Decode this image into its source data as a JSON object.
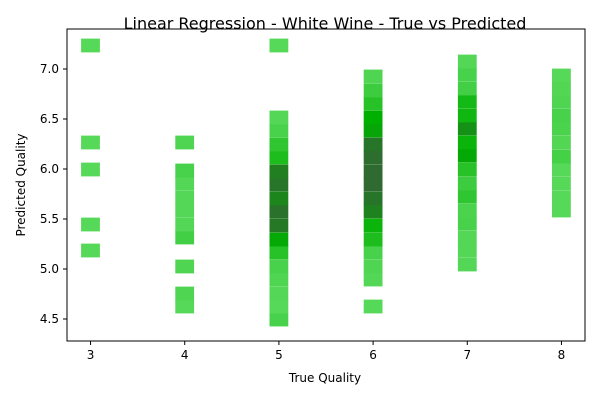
{
  "chart_data": {
    "type": "heatmap",
    "title": "Linear Regression - White Wine - True vs Predicted",
    "xlabel": "True Quality",
    "ylabel": "Predicted Quality",
    "xlim": [
      2.75,
      8.25
    ],
    "ylim": [
      4.28,
      7.4
    ],
    "x_ticks": [
      3,
      4,
      5,
      6,
      7,
      8
    ],
    "y_ticks": [
      4.5,
      5.0,
      5.5,
      6.0,
      6.5,
      7.0
    ],
    "x_tick_labels": [
      "3",
      "4",
      "5",
      "6",
      "7",
      "8"
    ],
    "y_tick_labels": [
      "4.5",
      "5.0",
      "5.5",
      "6.0",
      "6.5",
      "7.0"
    ],
    "bin_width_x": 0.2,
    "bin_height_y": 0.134,
    "colors": {
      "low": "#5fdc62",
      "mid": "#00b000",
      "high": "#2f6a30",
      "axes": "#000000",
      "background": "#ffffff"
    },
    "columns": [
      {
        "x": 3,
        "cells": [
          {
            "y0": 5.12,
            "level": 0.05
          },
          {
            "y0": 5.38,
            "level": 0.05
          },
          {
            "y0": 5.93,
            "level": 0.05
          },
          {
            "y0": 6.2,
            "level": 0.05
          },
          {
            "y0": 7.17,
            "level": 0.05
          }
        ]
      },
      {
        "x": 4,
        "cells": [
          {
            "y0": 4.56,
            "level": 0.05
          },
          {
            "y0": 4.69,
            "level": 0.08
          },
          {
            "y0": 4.96,
            "level": 0.08
          },
          {
            "y0": 5.25,
            "level": 0.15
          },
          {
            "y0": 5.38,
            "level": 0.06
          },
          {
            "y0": 5.52,
            "level": 0.06
          },
          {
            "y0": 5.65,
            "level": 0.06
          },
          {
            "y0": 5.79,
            "level": 0.06
          },
          {
            "y0": 5.92,
            "level": 0.12
          },
          {
            "y0": 6.2,
            "level": 0.08
          }
        ]
      },
      {
        "x": 5,
        "cells": [
          {
            "y0": 4.43,
            "level": 0.12
          },
          {
            "y0": 4.56,
            "level": 0.05
          },
          {
            "y0": 4.69,
            "level": 0.06
          },
          {
            "y0": 4.83,
            "level": 0.08
          },
          {
            "y0": 4.96,
            "level": 0.12
          },
          {
            "y0": 5.1,
            "level": 0.3
          },
          {
            "y0": 5.23,
            "level": 0.55
          },
          {
            "y0": 5.37,
            "level": 0.9
          },
          {
            "y0": 5.51,
            "level": 0.95
          },
          {
            "y0": 5.64,
            "level": 0.8
          },
          {
            "y0": 5.78,
            "level": 0.92
          },
          {
            "y0": 5.91,
            "level": 0.85
          },
          {
            "y0": 6.05,
            "level": 0.35
          },
          {
            "y0": 6.18,
            "level": 0.25
          },
          {
            "y0": 6.32,
            "level": 0.12
          },
          {
            "y0": 6.45,
            "level": 0.06
          },
          {
            "y0": 7.17,
            "level": 0.05
          }
        ]
      },
      {
        "x": 6,
        "cells": [
          {
            "y0": 4.56,
            "level": 0.05
          },
          {
            "y0": 4.83,
            "level": 0.06
          },
          {
            "y0": 4.96,
            "level": 0.08
          },
          {
            "y0": 5.1,
            "level": 0.12
          },
          {
            "y0": 5.23,
            "level": 0.35
          },
          {
            "y0": 5.37,
            "level": 0.45
          },
          {
            "y0": 5.51,
            "level": 0.82
          },
          {
            "y0": 5.64,
            "level": 0.92
          },
          {
            "y0": 5.78,
            "level": 1.0
          },
          {
            "y0": 5.91,
            "level": 1.0
          },
          {
            "y0": 6.05,
            "level": 0.98
          },
          {
            "y0": 6.18,
            "level": 0.92
          },
          {
            "y0": 6.32,
            "level": 0.58
          },
          {
            "y0": 6.45,
            "level": 0.5
          },
          {
            "y0": 6.59,
            "level": 0.3
          },
          {
            "y0": 6.72,
            "level": 0.18
          },
          {
            "y0": 6.86,
            "level": 0.08
          }
        ]
      },
      {
        "x": 7,
        "cells": [
          {
            "y0": 4.98,
            "level": 0.06
          },
          {
            "y0": 5.12,
            "level": 0.06
          },
          {
            "y0": 5.25,
            "level": 0.06
          },
          {
            "y0": 5.39,
            "level": 0.12
          },
          {
            "y0": 5.52,
            "level": 0.1
          },
          {
            "y0": 5.66,
            "level": 0.25
          },
          {
            "y0": 5.79,
            "level": 0.18
          },
          {
            "y0": 5.93,
            "level": 0.3
          },
          {
            "y0": 6.07,
            "level": 0.55
          },
          {
            "y0": 6.2,
            "level": 0.45
          },
          {
            "y0": 6.34,
            "level": 0.72
          },
          {
            "y0": 6.47,
            "level": 0.42
          },
          {
            "y0": 6.61,
            "level": 0.4
          },
          {
            "y0": 6.74,
            "level": 0.15
          },
          {
            "y0": 6.88,
            "level": 0.12
          },
          {
            "y0": 7.01,
            "level": 0.06
          }
        ]
      },
      {
        "x": 8,
        "cells": [
          {
            "y0": 5.52,
            "level": 0.05
          },
          {
            "y0": 5.65,
            "level": 0.05
          },
          {
            "y0": 5.79,
            "level": 0.05
          },
          {
            "y0": 5.93,
            "level": 0.05
          },
          {
            "y0": 6.06,
            "level": 0.14
          },
          {
            "y0": 6.2,
            "level": 0.07
          },
          {
            "y0": 6.34,
            "level": 0.1
          },
          {
            "y0": 6.47,
            "level": 0.12
          },
          {
            "y0": 6.61,
            "level": 0.08
          },
          {
            "y0": 6.74,
            "level": 0.07
          },
          {
            "y0": 6.87,
            "level": 0.05
          }
        ]
      }
    ]
  }
}
